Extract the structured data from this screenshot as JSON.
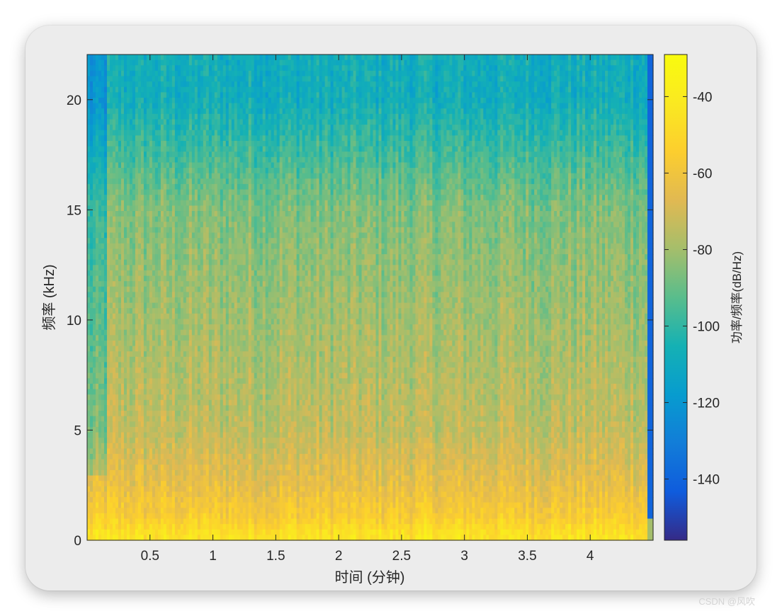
{
  "chart_data": {
    "type": "heatmap",
    "title": "",
    "xlabel": "时间 (分钟)",
    "ylabel": "频率 (kHz)",
    "xlim": [
      0,
      4.5
    ],
    "ylim": [
      0,
      22.05
    ],
    "xticks": [
      0.5,
      1,
      1.5,
      2,
      2.5,
      3,
      3.5,
      4
    ],
    "xtick_labels": [
      "0.5",
      "1",
      "1.5",
      "2",
      "2.5",
      "3",
      "3.5",
      "4"
    ],
    "yticks": [
      0,
      5,
      10,
      15,
      20
    ],
    "ytick_labels": [
      "0",
      "5",
      "10",
      "15",
      "20"
    ],
    "colormap": "parula",
    "colorbar": {
      "label": "功率/频率(dB/Hz)",
      "clim": [
        -156,
        -29
      ],
      "ticks": [
        -40,
        -60,
        -80,
        -100,
        -120,
        -140
      ],
      "tick_labels": [
        "-40",
        "-60",
        "-80",
        "-100",
        "-120",
        "-140"
      ]
    },
    "power_profile_db_per_hz": [
      {
        "freq_khz": 0.25,
        "power": -45
      },
      {
        "freq_khz": 1,
        "power": -55
      },
      {
        "freq_khz": 2.5,
        "power": -64
      },
      {
        "freq_khz": 5,
        "power": -74
      },
      {
        "freq_khz": 10,
        "power": -80
      },
      {
        "freq_khz": 15,
        "power": -86
      },
      {
        "freq_khz": 16.5,
        "power": -92
      },
      {
        "freq_khz": 20,
        "power": -108
      }
    ]
  },
  "watermark": "CSDN @风吹"
}
